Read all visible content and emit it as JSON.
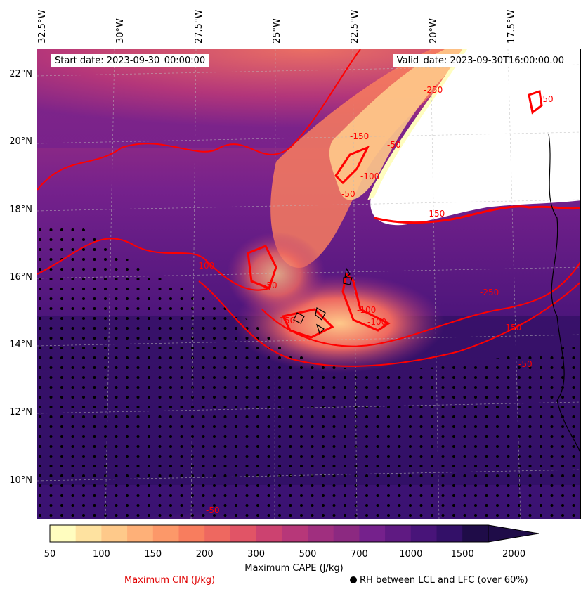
{
  "map": {
    "start_date": "Start date: 2023-09-30_00:00:00",
    "valid_date": "Valid_date: 2023-09-30T16:00:00.00",
    "lon_labels": [
      "32.5°W",
      "30°W",
      "27.5°W",
      "25°W",
      "22.5°W",
      "20°W",
      "17.5°W"
    ],
    "lat_labels": [
      "22°N",
      "20°N",
      "18°N",
      "16°N",
      "14°N",
      "12°N",
      "10°N"
    ],
    "lon_range": [
      -33.5,
      -16.0
    ],
    "lat_range": [
      8.9,
      22.8
    ],
    "gridlines": true,
    "contour_labels": [
      "-50",
      "-100",
      "-150",
      "-250",
      "-150",
      "-50",
      "-50",
      "-150",
      "-250",
      "-100",
      "-150",
      "-100",
      "-50",
      "-50",
      "-50",
      "-100"
    ],
    "contour_color": "#ff0000"
  },
  "colorbar": {
    "title": "Maximum CAPE (J/kg)",
    "ticks": [
      "50",
      "100",
      "150",
      "200",
      "300",
      "500",
      "700",
      "1000",
      "1500",
      "2000"
    ],
    "colors": [
      "#fffdbf",
      "#fee2a0",
      "#fec98a",
      "#feb078",
      "#fc9869",
      "#f87d5e",
      "#ee6860",
      "#e15466",
      "#cc4270",
      "#b73779",
      "#a02f7f",
      "#8c2981",
      "#75218c",
      "#5f1a82",
      "#481479",
      "#331068",
      "#1f0c48"
    ],
    "extend": "max"
  },
  "legend": {
    "cin_label": "Maximum CIN (J/kg)",
    "rh_label": "RH between LCL and LFC (over 60%)"
  }
}
